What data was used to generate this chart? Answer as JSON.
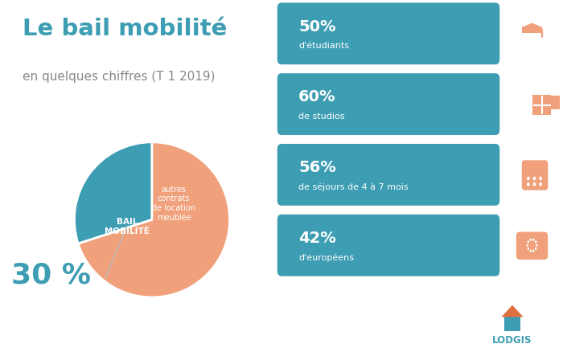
{
  "title_line1": "Le bail mobilité",
  "title_line2": "en quelques chiffres (T 1 2019)",
  "pie_values": [
    30,
    70
  ],
  "pie_colors": [
    "#3d9db3",
    "#f0a07a"
  ],
  "pie_label_bail": "BAIL\nMOBILITÉ",
  "pie_label_autres": "autres\ncontrats\nde location\nmeublée",
  "pie_pct": "30 %",
  "bar_data": [
    {
      "pct": "50%",
      "label": "d'étudiants",
      "value": 50
    },
    {
      "pct": "60%",
      "label": "de studios",
      "value": 60
    },
    {
      "pct": "56%",
      "label": "de séjours de 4 à 7 mois",
      "value": 56
    },
    {
      "pct": "42%",
      "label": "d'européens",
      "value": 42
    }
  ],
  "bar_color": "#3d9db3",
  "icon_color": "#f0a07a",
  "bg_color": "#ffffff",
  "teal_color": "#3d9db3",
  "orange_color": "#f0a07a",
  "title_color": "#3d9db3",
  "gray_color": "#888888"
}
